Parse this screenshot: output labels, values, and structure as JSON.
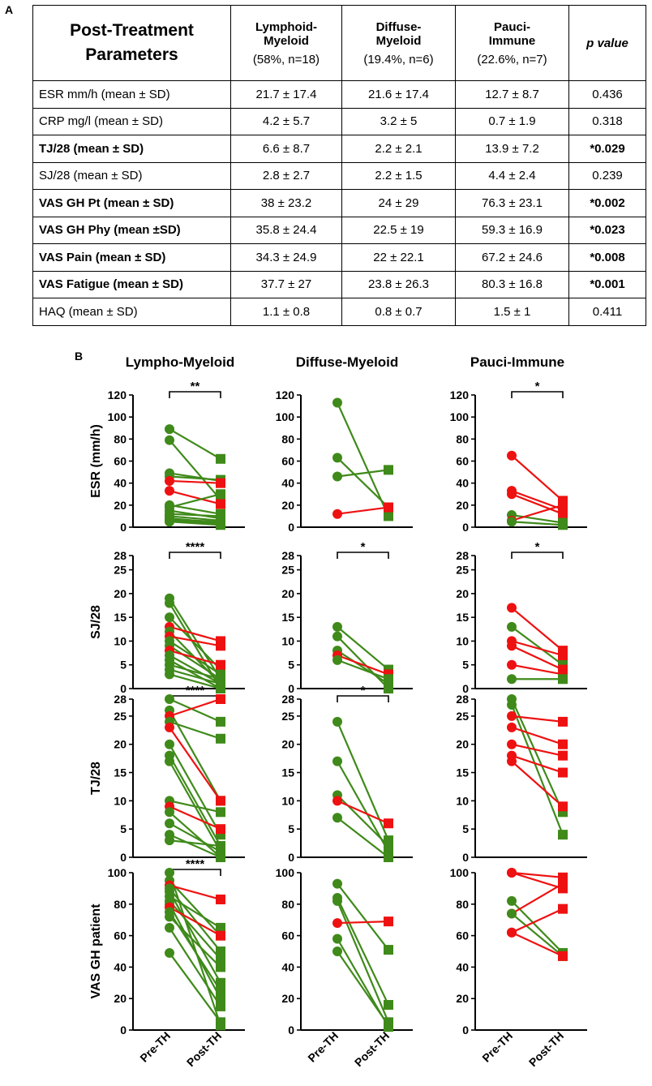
{
  "panel_a_letter": "A",
  "panel_b_letter": "B",
  "table": {
    "header": {
      "parameter": [
        "Post-Treatment",
        "Parameters"
      ],
      "groups": [
        {
          "name": [
            "Lymphoid-",
            "Myeloid"
          ],
          "sub": "(58%, n=18)"
        },
        {
          "name": [
            "Diffuse-",
            "Myeloid"
          ],
          "sub": "(19.4%, n=6)"
        },
        {
          "name": [
            "Pauci-",
            "Immune"
          ],
          "sub": "(22.6%, n=7)"
        }
      ],
      "pvalue": "p value"
    },
    "rows": [
      {
        "label": "ESR mm/h (mean ± SD)",
        "lm": "21.7 ± 17.4",
        "dm": "21.6 ± 17.4",
        "pi": "12.7 ± 8.7",
        "p": "0.436",
        "bold": false
      },
      {
        "label": "CRP mg/l (mean ± SD)",
        "lm": "4.2 ± 5.7",
        "dm": "3.2 ± 5",
        "pi": "0.7 ± 1.9",
        "p": "0.318",
        "bold": false
      },
      {
        "label": "TJ/28 (mean ± SD)",
        "lm": "6.6 ± 8.7",
        "dm": "2.2 ± 2.1",
        "pi": "13.9 ± 7.2",
        "p": "*0.029",
        "bold": true
      },
      {
        "label": "SJ/28 (mean ± SD)",
        "lm": "2.8 ± 2.7",
        "dm": "2.2 ± 1.5",
        "pi": "4.4 ± 2.4",
        "p": "0.239",
        "bold": false
      },
      {
        "label": "VAS GH Pt (mean ± SD)",
        "lm": "38 ± 23.2",
        "dm": "24 ± 29",
        "pi": "76.3 ± 23.1",
        "p": "*0.002",
        "bold": true
      },
      {
        "label": "VAS GH Phy (mean ±SD)",
        "lm": "35.8 ± 24.4",
        "dm": "22.5 ± 19",
        "pi": "59.3 ± 16.9",
        "p": "*0.023",
        "bold": true
      },
      {
        "label": "VAS Pain (mean ± SD)",
        "lm": "34.3 ± 24.9",
        "dm": "22 ± 22.1",
        "pi": "67.2 ± 24.6",
        "p": "*0.008",
        "bold": true
      },
      {
        "label": "VAS Fatigue (mean ± SD)",
        "lm": "37.7 ± 27",
        "dm": "23.8 ± 26.3",
        "pi": "80.3 ± 16.8",
        "p": "*0.001",
        "bold": true
      },
      {
        "label": "HAQ (mean ± SD)",
        "lm": "1.1 ± 0.8",
        "dm": "0.8 ± 0.7",
        "pi": "1.5 ± 1",
        "p": "0.411",
        "bold": false
      }
    ]
  },
  "colors": {
    "green": "#3f8a1a",
    "red": "#ee1111"
  },
  "chart_data": {
    "type": "paired-dot",
    "column_titles": [
      "Lympho-Myeloid",
      "Diffuse-Myeloid",
      "Pauci-Immune"
    ],
    "x_categories": [
      "Pre-TH",
      "Post-TH"
    ],
    "rows": [
      {
        "ylabel": "ESR (mm/h)",
        "ylim": [
          0,
          120
        ],
        "ticks": [
          0,
          20,
          40,
          60,
          80,
          100,
          120
        ]
      },
      {
        "ylabel": "SJ/28",
        "ylim": [
          0,
          28
        ],
        "ticks": [
          0,
          5,
          10,
          15,
          20,
          25,
          28
        ]
      },
      {
        "ylabel": "TJ/28",
        "ylim": [
          0,
          28
        ],
        "ticks": [
          0,
          5,
          10,
          15,
          20,
          25,
          28
        ]
      },
      {
        "ylabel": "VAS GH patient",
        "ylim": [
          0,
          100
        ],
        "ticks": [
          0,
          20,
          40,
          60,
          80,
          100
        ]
      }
    ],
    "panels": [
      {
        "row": 0,
        "col": 0,
        "sig": "**",
        "pairs": [
          {
            "pre": 89,
            "post": 62,
            "c": "g"
          },
          {
            "pre": 79,
            "post": 25,
            "c": "g"
          },
          {
            "pre": 49,
            "post": 42,
            "c": "g"
          },
          {
            "pre": 46,
            "post": 43,
            "c": "g"
          },
          {
            "pre": 42,
            "post": 40,
            "c": "r"
          },
          {
            "pre": 33,
            "post": 21,
            "c": "r"
          },
          {
            "pre": 20,
            "post": 12,
            "c": "g"
          },
          {
            "pre": 18,
            "post": 30,
            "c": "g"
          },
          {
            "pre": 15,
            "post": 8,
            "c": "g"
          },
          {
            "pre": 12,
            "post": 10,
            "c": "g"
          },
          {
            "pre": 10,
            "post": 6,
            "c": "g"
          },
          {
            "pre": 8,
            "post": 4,
            "c": "g"
          },
          {
            "pre": 7,
            "post": 5,
            "c": "g"
          },
          {
            "pre": 6,
            "post": 3,
            "c": "g"
          },
          {
            "pre": 5,
            "post": 2,
            "c": "g"
          }
        ]
      },
      {
        "row": 0,
        "col": 1,
        "sig": "",
        "pairs": [
          {
            "pre": 113,
            "post": 10,
            "c": "g"
          },
          {
            "pre": 63,
            "post": 18,
            "c": "g"
          },
          {
            "pre": 46,
            "post": 52,
            "c": "g"
          },
          {
            "pre": 12,
            "post": 18,
            "c": "r"
          }
        ]
      },
      {
        "row": 0,
        "col": 2,
        "sig": "*",
        "pairs": [
          {
            "pre": 65,
            "post": 24,
            "c": "r"
          },
          {
            "pre": 33,
            "post": 16,
            "c": "r"
          },
          {
            "pre": 30,
            "post": 12,
            "c": "r"
          },
          {
            "pre": 11,
            "post": 4,
            "c": "g"
          },
          {
            "pre": 6,
            "post": 20,
            "c": "r"
          },
          {
            "pre": 5,
            "post": 2,
            "c": "g"
          }
        ]
      },
      {
        "row": 1,
        "col": 0,
        "sig": "****",
        "pairs": [
          {
            "pre": 19,
            "post": 2,
            "c": "g"
          },
          {
            "pre": 18,
            "post": 0,
            "c": "g"
          },
          {
            "pre": 15,
            "post": 4,
            "c": "g"
          },
          {
            "pre": 13,
            "post": 10,
            "c": "r"
          },
          {
            "pre": 12,
            "post": 1,
            "c": "g"
          },
          {
            "pre": 11,
            "post": 9,
            "c": "r"
          },
          {
            "pre": 10,
            "post": 3,
            "c": "g"
          },
          {
            "pre": 9,
            "post": 2,
            "c": "g"
          },
          {
            "pre": 8,
            "post": 5,
            "c": "r"
          },
          {
            "pre": 7,
            "post": 1,
            "c": "g"
          },
          {
            "pre": 6,
            "post": 0,
            "c": "g"
          },
          {
            "pre": 5,
            "post": 2,
            "c": "g"
          },
          {
            "pre": 4,
            "post": 1,
            "c": "g"
          },
          {
            "pre": 3,
            "post": 0,
            "c": "g"
          }
        ]
      },
      {
        "row": 1,
        "col": 1,
        "sig": "*",
        "pairs": [
          {
            "pre": 13,
            "post": 4,
            "c": "g"
          },
          {
            "pre": 11,
            "post": 0,
            "c": "g"
          },
          {
            "pre": 8,
            "post": 1,
            "c": "g"
          },
          {
            "pre": 7,
            "post": 3,
            "c": "r"
          },
          {
            "pre": 6,
            "post": 2,
            "c": "g"
          }
        ]
      },
      {
        "row": 1,
        "col": 2,
        "sig": "*",
        "pairs": [
          {
            "pre": 17,
            "post": 8,
            "c": "r"
          },
          {
            "pre": 13,
            "post": 5,
            "c": "g"
          },
          {
            "pre": 10,
            "post": 7,
            "c": "r"
          },
          {
            "pre": 9,
            "post": 4,
            "c": "r"
          },
          {
            "pre": 5,
            "post": 3,
            "c": "r"
          },
          {
            "pre": 2,
            "post": 2,
            "c": "g"
          }
        ]
      },
      {
        "row": 2,
        "col": 0,
        "sig": "****",
        "pairs": [
          {
            "pre": 28,
            "post": 24,
            "c": "g"
          },
          {
            "pre": 26,
            "post": 10,
            "c": "g"
          },
          {
            "pre": 25,
            "post": 28,
            "c": "r"
          },
          {
            "pre": 24,
            "post": 21,
            "c": "g"
          },
          {
            "pre": 23,
            "post": 10,
            "c": "r"
          },
          {
            "pre": 20,
            "post": 4,
            "c": "g"
          },
          {
            "pre": 18,
            "post": 2,
            "c": "g"
          },
          {
            "pre": 17,
            "post": 1,
            "c": "g"
          },
          {
            "pre": 10,
            "post": 8,
            "c": "g"
          },
          {
            "pre": 9,
            "post": 5,
            "c": "r"
          },
          {
            "pre": 8,
            "post": 0,
            "c": "g"
          },
          {
            "pre": 6,
            "post": 1,
            "c": "g"
          },
          {
            "pre": 4,
            "post": 0,
            "c": "g"
          },
          {
            "pre": 3,
            "post": 2,
            "c": "g"
          }
        ]
      },
      {
        "row": 2,
        "col": 1,
        "sig": "*",
        "pairs": [
          {
            "pre": 24,
            "post": 3,
            "c": "g"
          },
          {
            "pre": 17,
            "post": 1,
            "c": "g"
          },
          {
            "pre": 11,
            "post": 2,
            "c": "g"
          },
          {
            "pre": 10,
            "post": 6,
            "c": "r"
          },
          {
            "pre": 7,
            "post": 0,
            "c": "g"
          }
        ]
      },
      {
        "row": 2,
        "col": 2,
        "sig": "",
        "pairs": [
          {
            "pre": 28,
            "post": 8,
            "c": "g"
          },
          {
            "pre": 27,
            "post": 4,
            "c": "g"
          },
          {
            "pre": 25,
            "post": 24,
            "c": "r"
          },
          {
            "pre": 23,
            "post": 20,
            "c": "r"
          },
          {
            "pre": 20,
            "post": 18,
            "c": "r"
          },
          {
            "pre": 18,
            "post": 15,
            "c": "r"
          },
          {
            "pre": 17,
            "post": 9,
            "c": "r"
          }
        ]
      },
      {
        "row": 3,
        "col": 0,
        "sig": "****",
        "pairs": [
          {
            "pre": 100,
            "post": 3,
            "c": "g"
          },
          {
            "pre": 95,
            "post": 60,
            "c": "g"
          },
          {
            "pre": 92,
            "post": 83,
            "c": "r"
          },
          {
            "pre": 90,
            "post": 50,
            "c": "g"
          },
          {
            "pre": 88,
            "post": 30,
            "c": "g"
          },
          {
            "pre": 85,
            "post": 65,
            "c": "g"
          },
          {
            "pre": 82,
            "post": 45,
            "c": "g"
          },
          {
            "pre": 80,
            "post": 20,
            "c": "g"
          },
          {
            "pre": 78,
            "post": 60,
            "c": "r"
          },
          {
            "pre": 75,
            "post": 25,
            "c": "g"
          },
          {
            "pre": 72,
            "post": 40,
            "c": "g"
          },
          {
            "pre": 65,
            "post": 15,
            "c": "g"
          },
          {
            "pre": 49,
            "post": 5,
            "c": "g"
          }
        ]
      },
      {
        "row": 3,
        "col": 1,
        "sig": "",
        "pairs": [
          {
            "pre": 93,
            "post": 51,
            "c": "g"
          },
          {
            "pre": 84,
            "post": 16,
            "c": "g"
          },
          {
            "pre": 82,
            "post": 5,
            "c": "g"
          },
          {
            "pre": 68,
            "post": 69,
            "c": "r"
          },
          {
            "pre": 58,
            "post": 2,
            "c": "g"
          },
          {
            "pre": 50,
            "post": 3,
            "c": "g"
          }
        ]
      },
      {
        "row": 3,
        "col": 2,
        "sig": "",
        "pairs": [
          {
            "pre": 100,
            "post": 97,
            "c": "r"
          },
          {
            "pre": 100,
            "post": 90,
            "c": "r"
          },
          {
            "pre": 82,
            "post": 49,
            "c": "g"
          },
          {
            "pre": 74,
            "post": 93,
            "c": "r"
          },
          {
            "pre": 74,
            "post": 47,
            "c": "g"
          },
          {
            "pre": 62,
            "post": 77,
            "c": "r"
          },
          {
            "pre": 62,
            "post": 47,
            "c": "r"
          }
        ]
      }
    ]
  }
}
